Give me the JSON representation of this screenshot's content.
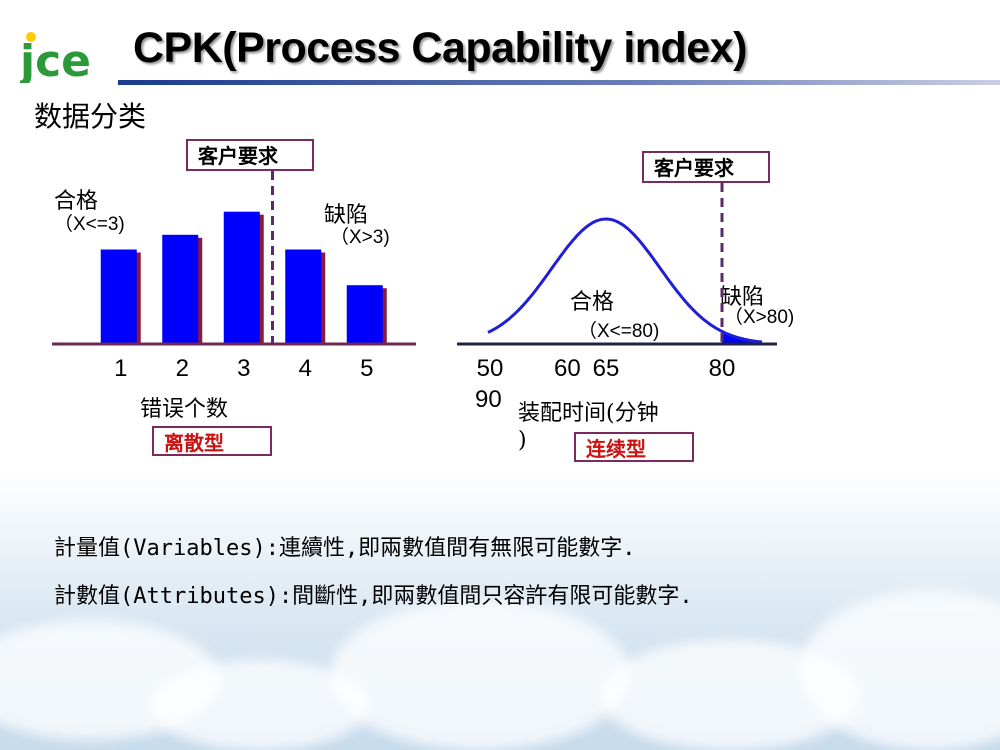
{
  "header": {
    "logo_text": "jce",
    "title": "CPK(Process Capability index)",
    "section_title": "数据分类"
  },
  "colors": {
    "bar_fill": "#0000ff",
    "bar_shadow": "#8b1a3a",
    "curve": "#1f1fd6",
    "spec_line": "#5a2a6a",
    "axis": "#6b2a55",
    "label_red": "#cc1111"
  },
  "chart_data": [
    {
      "type": "bar",
      "title": "",
      "categories": [
        "1",
        "2",
        "3",
        "4",
        "5"
      ],
      "values": [
        4.5,
        5.2,
        6.3,
        4.5,
        2.8
      ],
      "xlabel": "错误个数",
      "ylabel": "",
      "ylim": [
        0,
        8
      ],
      "spec_limit": {
        "label": "客户要求",
        "x": 3.5
      },
      "regions": {
        "pass": {
          "label": "合格",
          "condition": "（X<=3)"
        },
        "defect": {
          "label": "缺陷",
          "condition": "（X>3)"
        }
      },
      "category_label": "离散型"
    },
    {
      "type": "area",
      "title": "",
      "x_ticks": [
        "50",
        "60",
        "65",
        "80"
      ],
      "x_ticks_second_line": "90",
      "xlabel": "装配时间(分钟",
      "xlabel_wrap": ")",
      "spec_limit": {
        "label": "客户要求",
        "x": 80
      },
      "distribution": {
        "mean": 65,
        "sd": 7
      },
      "regions": {
        "pass": {
          "label": "合格",
          "condition": "（X<=80)"
        },
        "defect": {
          "label": "缺陷",
          "condition": "（X>80)"
        }
      },
      "category_label": "连续型"
    }
  ],
  "definitions": [
    "計量值(Variables):連續性,即兩數值間有無限可能數字.",
    "計數值(Attributes):間斷性,即兩數值間只容許有限可能數字."
  ]
}
